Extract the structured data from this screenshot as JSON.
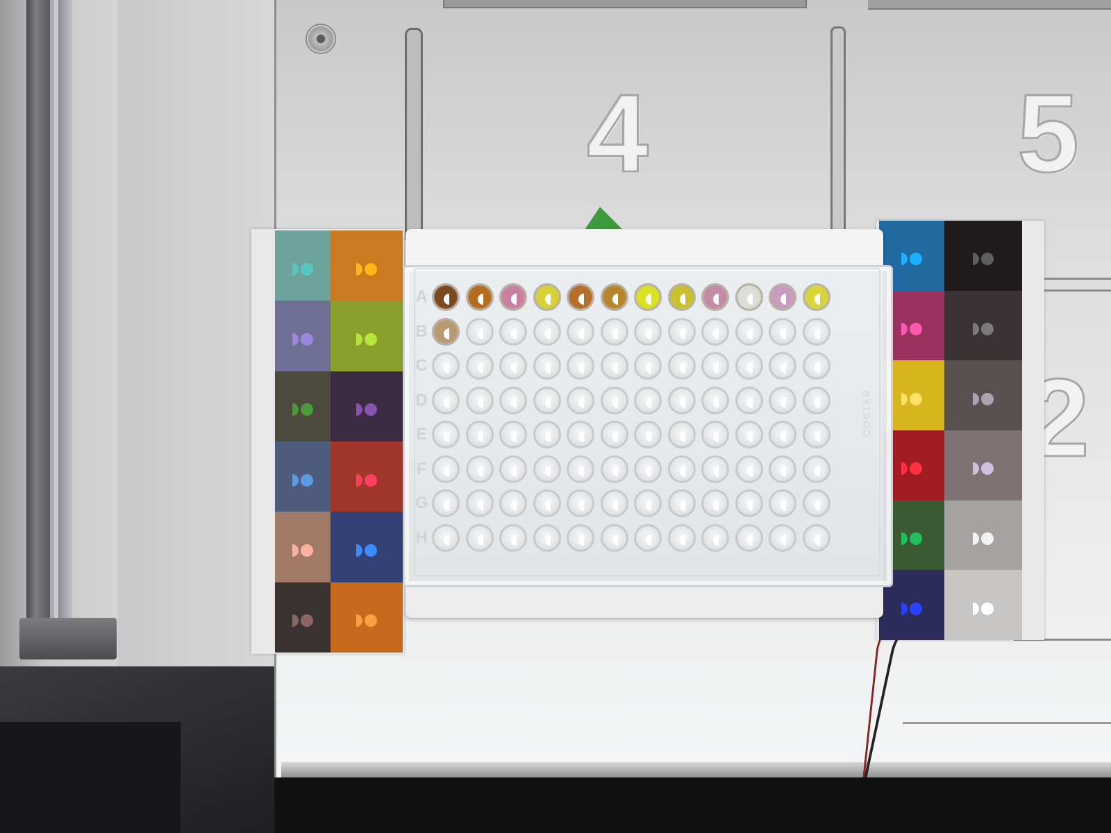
{
  "deck_numbers": [
    "4",
    "5",
    "2"
  ],
  "plate": {
    "rows": [
      "A",
      "B",
      "C",
      "D",
      "E",
      "F",
      "G",
      "H"
    ],
    "columns": 12,
    "row_A_colors": [
      "#7a4a1e",
      "#b36d1f",
      "#c87fa0",
      "#d7d233",
      "#b46f2a",
      "#b8842c",
      "#dbe125",
      "#c8c12c",
      "#c58aa5",
      "#d9dfd6",
      "#c99cbc",
      "#d9d63a"
    ],
    "filled_wells_row_B": [
      "#b89a72"
    ],
    "empty_well_color": "#e4e6e7",
    "side_text": "COSTAR"
  },
  "left_card": {
    "patches": [
      {
        "color": "#6ea39b",
        "marker": "#56c8c0"
      },
      {
        "color": "#c97c1f",
        "marker": "#ffb61a"
      },
      {
        "color": "#6f6e93",
        "marker": "#9a88e0"
      },
      {
        "color": "#8ba02c",
        "marker": "#b7e63a"
      },
      {
        "color": "#4b4a3c",
        "marker": "#4b9a3a"
      },
      {
        "color": "#3b2c44",
        "marker": "#8752b0"
      },
      {
        "color": "#4d5c7c",
        "marker": "#5a9ae0"
      },
      {
        "color": "#a23628",
        "marker": "#ff3f60"
      },
      {
        "color": "#a07a66",
        "marker": "#ffb0a0"
      },
      {
        "color": "#334075",
        "marker": "#3c8cff"
      },
      {
        "color": "#3a3230",
        "marker": "#8a6660"
      },
      {
        "color": "#c76a1e",
        "marker": "#ffa040"
      }
    ]
  },
  "right_card": {
    "patches": [
      {
        "color": "#1f6aa0",
        "marker": "#1ab0ff"
      },
      {
        "color": "#1f1a1c",
        "marker": "#5e5e5e"
      },
      {
        "color": "#9a3260",
        "marker": "#ff58b0"
      },
      {
        "color": "#3a3234",
        "marker": "#7a7a7a"
      },
      {
        "color": "#d6b61c",
        "marker": "#ffe066"
      },
      {
        "color": "#56504e",
        "marker": "#b0a0b0"
      },
      {
        "color": "#a01c22",
        "marker": "#ff3040"
      },
      {
        "color": "#7c7272",
        "marker": "#d0c0e0"
      },
      {
        "color": "#3a5a34",
        "marker": "#20c060"
      },
      {
        "color": "#a6a2a2",
        "marker": "#f2f2f2"
      },
      {
        "color": "#2c2c5c",
        "marker": "#2a40ff"
      },
      {
        "color": "#c8c6c4",
        "marker": "#ffffff"
      }
    ]
  }
}
